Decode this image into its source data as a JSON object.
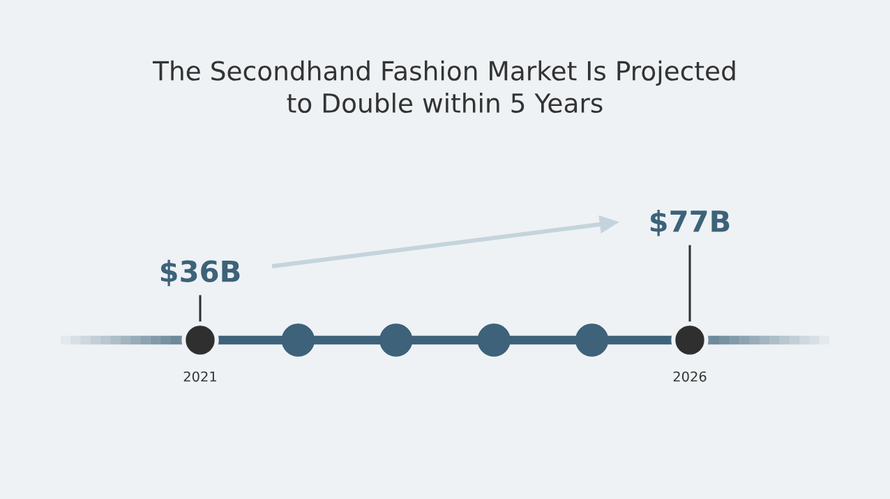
{
  "chart_data": {
    "type": "other",
    "title": "The Secondhand Fashion Market Is Projected\nto Double within 5 Years",
    "categories": [
      "2021",
      null,
      null,
      null,
      null,
      "2026"
    ],
    "values": [
      36,
      null,
      null,
      null,
      null,
      77
    ],
    "value_labels": [
      "$36B",
      null,
      null,
      null,
      null,
      "$77B"
    ],
    "color": "#3d6279",
    "colors": [
      "#2f2f2f",
      "#3d6279",
      "#3d6279",
      "#3d6279",
      "#3d6279",
      "#2f2f2f"
    ]
  }
}
